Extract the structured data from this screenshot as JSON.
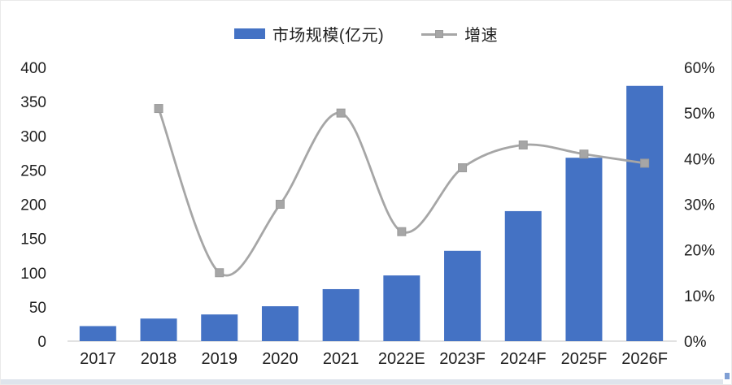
{
  "legend": {
    "market_size_label": "市场规模(亿元)",
    "growth_label": "增速"
  },
  "colors": {
    "bar": "#4472c4",
    "line": "#a6a6a6",
    "marker_stroke": "#9b9b9b",
    "axis_line": "#d9d9d9",
    "text": "#1f1f1f"
  },
  "chart_data": {
    "type": "bar+line",
    "title": "",
    "categories": [
      "2017",
      "2018",
      "2019",
      "2020",
      "2021",
      "2022E",
      "2023F",
      "2024F",
      "2025F",
      "2026F"
    ],
    "series": [
      {
        "name": "市场规模(亿元)",
        "type": "bar",
        "axis": "left",
        "color": "#4472c4",
        "values": [
          22,
          33,
          39,
          51,
          76,
          96,
          132,
          190,
          268,
          373
        ]
      },
      {
        "name": "增速",
        "type": "line",
        "axis": "right",
        "color": "#a6a6a6",
        "marker": "square",
        "smooth": true,
        "unit": "%",
        "values": [
          null,
          51,
          15,
          30,
          50,
          24,
          38,
          43,
          41,
          39
        ]
      }
    ],
    "left_axis": {
      "min": 0,
      "max": 400,
      "tick_values": [
        0,
        50,
        100,
        150,
        200,
        250,
        300,
        350,
        400
      ],
      "tick_labels": [
        "0",
        "50",
        "100",
        "150",
        "200",
        "250",
        "300",
        "350",
        "400"
      ]
    },
    "right_axis": {
      "min": 0,
      "max": 60,
      "tick_values": [
        0,
        10,
        20,
        30,
        40,
        50,
        60
      ],
      "tick_labels": [
        "0%",
        "10%",
        "20%",
        "30%",
        "40%",
        "50%",
        "60%"
      ]
    },
    "legend_position": "top",
    "grid": false
  }
}
